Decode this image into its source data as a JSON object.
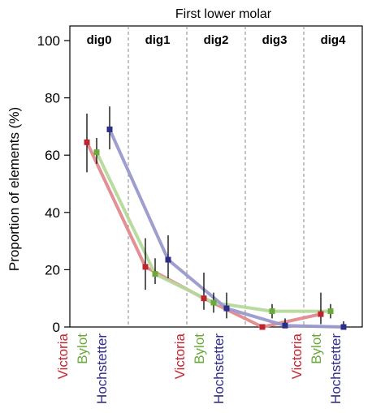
{
  "chart_data": {
    "type": "line",
    "title": "First lower molar",
    "ylabel": "Proportion of  elements (%)",
    "xlabel": "",
    "ylim": [
      0,
      100
    ],
    "yticks": [
      0,
      20,
      40,
      60,
      80,
      100
    ],
    "categories": [
      "dig0",
      "dig1",
      "dig2",
      "dig3",
      "dig4"
    ],
    "grid": false,
    "series": [
      {
        "name": "Victoria",
        "color": "#c0252f",
        "line_color": "#e08a8e",
        "values": [
          64.5,
          21,
          10,
          0,
          4.5
        ],
        "error_low": [
          54,
          13,
          6,
          0,
          1
        ],
        "error_high": [
          74.5,
          31,
          19,
          0,
          12
        ]
      },
      {
        "name": "Bylot",
        "color": "#6aaa3a",
        "line_color": "#b6d99a",
        "values": [
          61,
          18.5,
          8.5,
          5.5,
          5.5
        ],
        "error_low": [
          57,
          15,
          5,
          3,
          3
        ],
        "error_high": [
          66,
          24,
          12,
          8,
          8
        ]
      },
      {
        "name": "Hochstetter",
        "color": "#2d2d8c",
        "line_color": "#9a9acc",
        "values": [
          69,
          23.5,
          6.5,
          0.5,
          0
        ],
        "error_low": [
          62,
          17,
          3,
          0,
          0
        ],
        "error_high": [
          77,
          32,
          12,
          3,
          2
        ]
      }
    ],
    "xtick_groups": [
      {
        "category_index": 0,
        "labels": [
          "Victoria",
          "Bylot",
          "Hochstetter"
        ]
      },
      {
        "category_index": 2,
        "labels": [
          "Victoria",
          "Bylot",
          "Hochstetter"
        ]
      },
      {
        "category_index": 4,
        "labels": [
          "Victoria",
          "Bylot",
          "Hochstetter"
        ]
      }
    ]
  }
}
